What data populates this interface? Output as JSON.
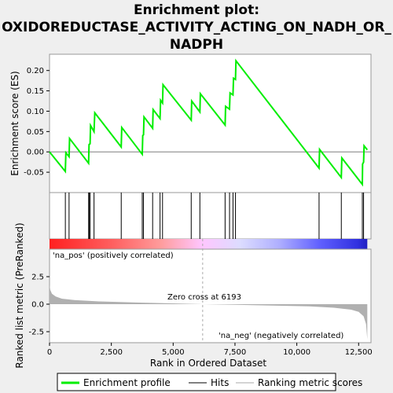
{
  "chart_data": {
    "type": "line",
    "title_lines": [
      "Enrichment plot:",
      "OXIDOREDUCTASE_ACTIVITY_ACTING_ON_NADH_OR_",
      "NADPH"
    ],
    "top_panel": {
      "ylabel": "Enrichment score (ES)",
      "ylim": [
        -0.1,
        0.24
      ],
      "yticks": [
        -0.05,
        0.0,
        0.05,
        0.1,
        0.15,
        0.2
      ],
      "ytick_labels": [
        "-0.05",
        "0.00",
        "0.05",
        "0.10",
        "0.15",
        "0.20"
      ],
      "series": [
        {
          "name": "Enrichment profile",
          "color": "#00ee00",
          "x": [
            0,
            640,
            660,
            790,
            810,
            1580,
            1600,
            1640,
            1660,
            1800,
            1830,
            2900,
            2920,
            3750,
            3770,
            3800,
            3820,
            4170,
            4190,
            4470,
            4490,
            4570,
            4590,
            5730,
            5750,
            6080,
            6100,
            7100,
            7120,
            7280,
            7300,
            7420,
            7440,
            7520,
            7540,
            10900,
            10920,
            11800,
            11820,
            12650,
            12660,
            12700,
            12720,
            12850
          ],
          "y": [
            0.0,
            -0.048,
            -0.002,
            -0.012,
            0.033,
            -0.028,
            0.018,
            0.02,
            0.065,
            0.05,
            0.096,
            0.012,
            0.06,
            -0.006,
            0.04,
            0.042,
            0.086,
            0.058,
            0.104,
            0.082,
            0.127,
            0.12,
            0.165,
            0.078,
            0.125,
            0.098,
            0.143,
            0.066,
            0.112,
            0.105,
            0.145,
            0.14,
            0.181,
            0.178,
            0.224,
            -0.04,
            0.006,
            -0.063,
            -0.015,
            -0.08,
            -0.03,
            -0.025,
            0.015,
            0.005
          ]
        }
      ]
    },
    "hits": [
      640,
      790,
      1580,
      1600,
      1640,
      1800,
      2900,
      3750,
      3800,
      4170,
      4470,
      4570,
      5730,
      6080,
      7100,
      7280,
      7420,
      7520,
      10900,
      11800,
      12650,
      12700
    ],
    "bottom_panel": {
      "ylabel": "Ranked list metric (PreRanked)",
      "xlabel": "Rank in Ordered Dataset",
      "ylim": [
        -3.5,
        5.0
      ],
      "yticks": [
        -2.5,
        0.0,
        2.5
      ],
      "ytick_labels": [
        "-2.5",
        "0.0",
        "2.5"
      ],
      "xlim": [
        0,
        13000
      ],
      "xticks": [
        0,
        2500,
        5000,
        7500,
        10000,
        12500
      ],
      "xtick_labels": [
        "0",
        "2,500",
        "5,000",
        "7,500",
        "10,000",
        "12,500"
      ],
      "metric_profile": {
        "x": [
          0,
          30,
          100,
          250,
          500,
          1000,
          2000,
          3500,
          5000,
          6193,
          7500,
          9000,
          10500,
          11500,
          12200,
          12500,
          12700,
          12800,
          12850
        ],
        "y": [
          1.8,
          1.3,
          0.95,
          0.7,
          0.5,
          0.38,
          0.25,
          0.15,
          0.07,
          0.0,
          -0.06,
          -0.12,
          -0.2,
          -0.32,
          -0.5,
          -0.7,
          -1.1,
          -1.8,
          -3.2
        ]
      },
      "zero_cross_label": "Zero cross at 6193",
      "zero_cross_x": 6193,
      "pos_label": "'na_pos' (positively correlated)",
      "neg_label": "'na_neg' (negatively correlated)"
    },
    "n_ranks": 12850,
    "legend": {
      "placement": "bottom",
      "items": [
        {
          "label": "Enrichment profile",
          "color": "#00ee00"
        },
        {
          "label": "Hits",
          "color": "#000000"
        },
        {
          "label": "Ranking metric scores",
          "color": "#aaaaaa"
        }
      ]
    },
    "colors": {
      "es_line": "#00ee00",
      "pos_label": "#dd0000",
      "neg_label": "#0000cc",
      "metric_fill": "#b0b0b0"
    }
  }
}
